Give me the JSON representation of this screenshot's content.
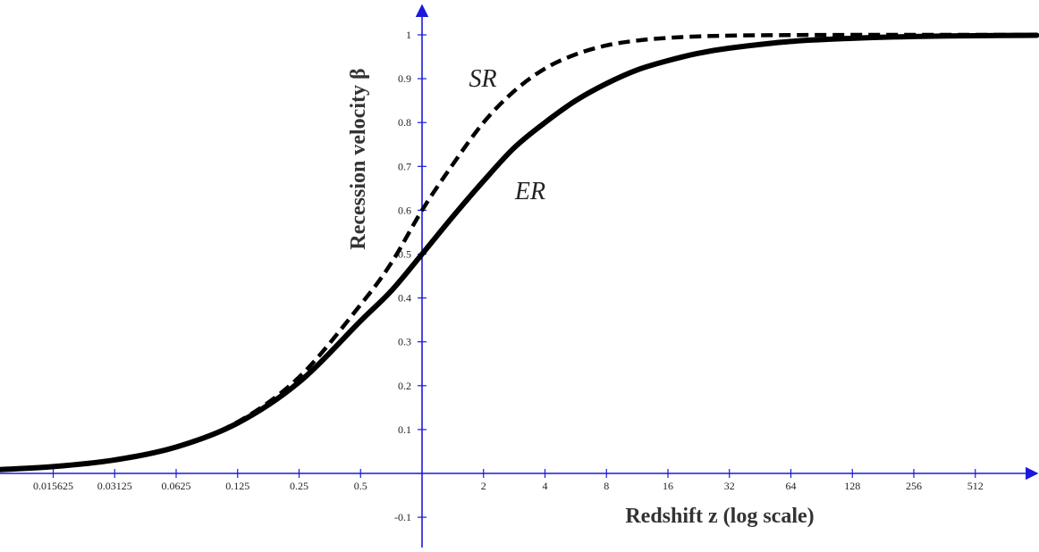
{
  "chart_data": {
    "type": "line",
    "title": "",
    "xlabel": "Redshift z (log scale)",
    "ylabel": "Recession velocity β",
    "x_scale": "log2",
    "xlim": [
      0.0078125,
      1024
    ],
    "ylim": [
      -0.15,
      1.07
    ],
    "x_ticks": [
      "0.015625",
      "0.03125",
      "0.0625",
      "0.125",
      "0.25",
      "0.5",
      "2",
      "4",
      "8",
      "16",
      "32",
      "64",
      "128",
      "256",
      "512"
    ],
    "y_ticks": [
      "-0.1",
      "0.1",
      "0.2",
      "0.3",
      "0.4",
      "0.5",
      "0.6",
      "0.7",
      "0.8",
      "0.9",
      "1"
    ],
    "grid": false,
    "axis_color": "#1a1adf",
    "series": [
      {
        "name": "SR",
        "style": "dashed",
        "color": "#000000",
        "x": [
          0.0078125,
          0.015625,
          0.03125,
          0.0625,
          0.125,
          0.25,
          0.5,
          0.70711,
          1,
          1.41421,
          2,
          2.82843,
          4,
          5.65685,
          8,
          11.3137,
          16,
          22.6274,
          32,
          64,
          128,
          256,
          512,
          1024
        ],
        "y": [
          0.0078,
          0.0155,
          0.0308,
          0.0607,
          0.1172,
          0.2195,
          0.3846,
          0.4798,
          0.6,
          0.7044,
          0.8,
          0.8719,
          0.9231,
          0.9555,
          0.9759,
          0.9869,
          0.9931,
          0.9964,
          0.9982,
          0.9995,
          0.9999,
          1.0,
          1.0,
          1.0
        ]
      },
      {
        "name": "ER",
        "style": "solid",
        "color": "#000000",
        "x": [
          0.0078125,
          0.015625,
          0.03125,
          0.0625,
          0.125,
          0.25,
          0.5,
          0.70711,
          1,
          1.41421,
          2,
          2.82843,
          4,
          5.65685,
          8,
          11.3137,
          16,
          22.6274,
          32,
          64,
          128,
          256,
          512,
          1024
        ],
        "y": [
          0.0078,
          0.0155,
          0.0307,
          0.0602,
          0.1147,
          0.2081,
          0.3475,
          0.4162,
          0.5,
          0.5854,
          0.6667,
          0.7426,
          0.8,
          0.85,
          0.8889,
          0.92,
          0.9412,
          0.958,
          0.9697,
          0.985,
          0.9922,
          0.9961,
          0.998,
          0.999
        ]
      }
    ],
    "annotations": [
      {
        "text": "SR",
        "series": "SR"
      },
      {
        "text": "ER",
        "series": "ER"
      }
    ]
  }
}
